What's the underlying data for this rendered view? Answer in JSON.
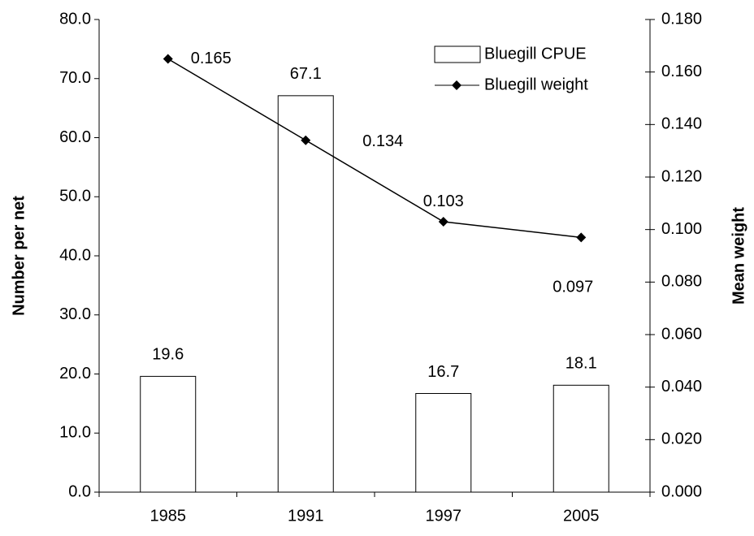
{
  "chart_data": {
    "type": "combo",
    "categories": [
      "1985",
      "1991",
      "1997",
      "2005"
    ],
    "series": [
      {
        "name": "Bluegill CPUE",
        "type": "bar",
        "color": "#ffffff",
        "values": [
          19.6,
          67.1,
          16.7,
          18.1
        ]
      },
      {
        "name": "Bluegill weight",
        "type": "line",
        "axis": "y2",
        "color": "#000000",
        "values": [
          0.165,
          0.134,
          0.103,
          0.097
        ]
      }
    ],
    "ylabel": "Number per net",
    "y2label": "Mean weight",
    "ylim": [
      0,
      80
    ],
    "yticks": [
      {
        "value": 0,
        "label": "0.0"
      },
      {
        "value": 10,
        "label": "10.0"
      },
      {
        "value": 20,
        "label": "20.0"
      },
      {
        "value": 30,
        "label": "30.0"
      },
      {
        "value": 40,
        "label": "40.0"
      },
      {
        "value": 50,
        "label": "50.0"
      },
      {
        "value": 60,
        "label": "60.0"
      },
      {
        "value": 70,
        "label": "70.0"
      },
      {
        "value": 80,
        "label": "80.0"
      }
    ],
    "y2lim": [
      0,
      0.18
    ],
    "y2ticks": [
      {
        "value": 0,
        "label": "0.000"
      },
      {
        "value": 0.02,
        "label": "0.020"
      },
      {
        "value": 0.04,
        "label": "0.040"
      },
      {
        "value": 0.06,
        "label": "0.060"
      },
      {
        "value": 0.08,
        "label": "0.080"
      },
      {
        "value": 0.1,
        "label": "0.100"
      },
      {
        "value": 0.12,
        "label": "0.120"
      },
      {
        "value": 0.14,
        "label": "0.140"
      },
      {
        "value": 0.16,
        "label": "0.160"
      },
      {
        "value": 0.18,
        "label": "0.180"
      }
    ]
  }
}
